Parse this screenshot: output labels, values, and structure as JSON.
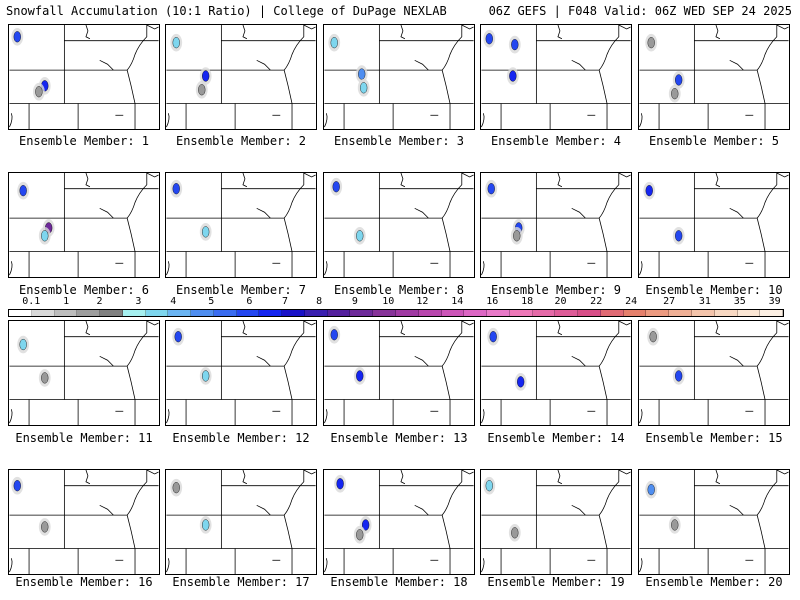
{
  "header": {
    "title": "Snowfall Accumulation (10:1 Ratio) | College of DuPage NEXLAB",
    "run_info": "06Z GEFS | F048 Valid: 06Z WED SEP 24 2025"
  },
  "members": [
    {
      "label": "Ensemble Member: 1"
    },
    {
      "label": "Ensemble Member: 2"
    },
    {
      "label": "Ensemble Member: 3"
    },
    {
      "label": "Ensemble Member: 4"
    },
    {
      "label": "Ensemble Member: 5"
    },
    {
      "label": "Ensemble Member: 6"
    },
    {
      "label": "Ensemble Member: 7"
    },
    {
      "label": "Ensemble Member: 8"
    },
    {
      "label": "Ensemble Member: 9"
    },
    {
      "label": "Ensemble Member: 10"
    },
    {
      "label": "Ensemble Member: 11"
    },
    {
      "label": "Ensemble Member: 12"
    },
    {
      "label": "Ensemble Member: 13"
    },
    {
      "label": "Ensemble Member: 14"
    },
    {
      "label": "Ensemble Member: 15"
    },
    {
      "label": "Ensemble Member: 16"
    },
    {
      "label": "Ensemble Member: 17"
    },
    {
      "label": "Ensemble Member: 18"
    },
    {
      "label": "Ensemble Member: 19"
    },
    {
      "label": "Ensemble Member: 20"
    }
  ],
  "colorbar": {
    "labels": [
      "0.1",
      "1",
      "2",
      "3",
      "4",
      "5",
      "6",
      "7",
      "8",
      "9",
      "10",
      "12",
      "14",
      "16",
      "18",
      "20",
      "22",
      "24",
      "27",
      "31",
      "35",
      "39"
    ],
    "colors": [
      "#ffffff",
      "#d9d9d9",
      "#bdbdbd",
      "#9e9e9e",
      "#808080",
      "#a6f0f0",
      "#7ed6ee",
      "#6ab4f2",
      "#4f8ef0",
      "#3a6cf0",
      "#2447f0",
      "#1525f0",
      "#1a12c8",
      "#3a1fb0",
      "#55219e",
      "#6e2a9a",
      "#873399",
      "#a03aa3",
      "#b846ad",
      "#cc55b8",
      "#dc66c4",
      "#e879c8",
      "#ee78b8",
      "#e56aa8",
      "#de5c98",
      "#d84e88",
      "#e06a74",
      "#e5806c",
      "#ec9a80",
      "#f0b096",
      "#f4c4ab",
      "#f8d8c2",
      "#fbe6d4",
      "#fdf0e4"
    ]
  }
}
